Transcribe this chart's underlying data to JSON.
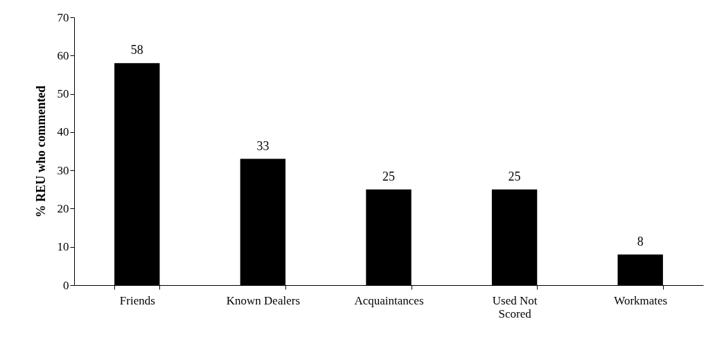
{
  "chart_data": {
    "type": "bar",
    "ylabel": "% REU who commented",
    "categories": [
      "Friends",
      "Known Dealers",
      "Acquaintances",
      "Used Not Scored",
      "Workmates"
    ],
    "values": [
      58,
      33,
      25,
      25,
      8
    ],
    "color": "#000000",
    "ylim": [
      0,
      70
    ],
    "yticks": [
      0,
      10,
      20,
      30,
      40,
      50,
      60,
      70
    ],
    "grid": false,
    "data_labels": true
  }
}
